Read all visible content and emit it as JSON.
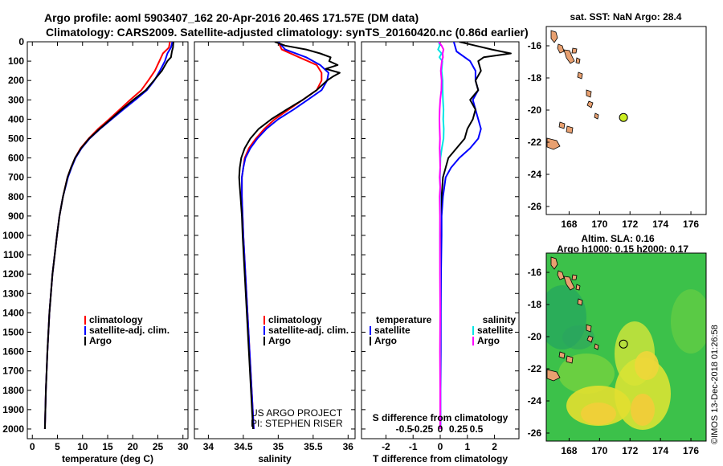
{
  "header": {
    "line1": "Argo profile: aoml 5903407_162 20-Apr-2016 20.46S 171.57E (DM data)",
    "line2": "Climatology: CARS2009. Satellite-adjusted climatology: synTS_20160420.nc (0.86d earlier)"
  },
  "colors": {
    "climatology": "#ff0000",
    "satellite": "#0000ff",
    "argo": "#000000",
    "sat_salinity": "#00e5e5",
    "argo_salinity": "#ff00ff",
    "argo_marker": "#ccee22",
    "land": "#e8a070"
  },
  "chart_data": [
    {
      "id": "temperature",
      "type": "line",
      "xlabel": "temperature (deg C)",
      "ylabel": "",
      "xlim": [
        -1,
        31
      ],
      "ylim": [
        2050,
        0
      ],
      "xticks": [
        0,
        5,
        10,
        15,
        20,
        25,
        30
      ],
      "xtick_labels": [
        "0",
        "5",
        "10",
        "15",
        "20",
        "25",
        "30"
      ],
      "yticks": [
        0,
        100,
        200,
        300,
        400,
        500,
        600,
        700,
        800,
        900,
        1000,
        1100,
        1200,
        1300,
        1400,
        1500,
        1600,
        1700,
        1800,
        1900,
        2000
      ],
      "legend": [
        "climatology",
        "satellite-adj. clim.",
        "Argo"
      ],
      "series": [
        {
          "name": "climatology",
          "color": "#ff0000",
          "depth": [
            0,
            30,
            60,
            100,
            150,
            200,
            250,
            300,
            350,
            400,
            450,
            500,
            550,
            600,
            650,
            700,
            800,
            900,
            1000,
            1200,
            1400,
            1600,
            1800,
            2000
          ],
          "values": [
            27.4,
            27.2,
            26.0,
            25.3,
            24.4,
            23.1,
            21.7,
            19.5,
            17.4,
            15.3,
            13.1,
            11.2,
            9.6,
            8.5,
            7.7,
            7.0,
            6.1,
            5.4,
            4.9,
            4.0,
            3.4,
            3.0,
            2.7,
            2.5
          ]
        },
        {
          "name": "satellite-adj. clim.",
          "color": "#0000ff",
          "depth": [
            0,
            30,
            60,
            100,
            150,
            200,
            250,
            300,
            350,
            400,
            450,
            500,
            550,
            600,
            650,
            700,
            800,
            900,
            1000,
            1200,
            1400,
            1600,
            1800,
            2000
          ],
          "values": [
            27.9,
            27.6,
            26.9,
            26.4,
            25.4,
            24.3,
            22.8,
            20.5,
            18.1,
            15.8,
            13.5,
            11.4,
            9.8,
            8.6,
            7.8,
            7.1,
            6.1,
            5.4,
            4.9,
            4.0,
            3.4,
            3.0,
            2.7,
            2.5
          ]
        },
        {
          "name": "Argo",
          "color": "#000000",
          "depth": [
            0,
            30,
            50,
            80,
            100,
            150,
            200,
            250,
            300,
            350,
            400,
            450,
            500,
            550,
            600,
            650,
            700,
            800,
            900,
            1000,
            1200,
            1400,
            1600,
            1800,
            2000
          ],
          "values": [
            28.1,
            28.0,
            27.8,
            27.6,
            26.9,
            25.8,
            24.2,
            22.6,
            20.1,
            17.8,
            15.6,
            13.4,
            11.3,
            9.7,
            8.5,
            7.7,
            7.0,
            6.1,
            5.4,
            4.9,
            4.0,
            3.4,
            3.0,
            2.7,
            2.5
          ]
        }
      ]
    },
    {
      "id": "salinity",
      "type": "line",
      "xlabel": "salinity",
      "xlim": [
        33.8,
        36.1
      ],
      "ylim": [
        2050,
        0
      ],
      "xticks": [
        34,
        34.5,
        35,
        35.5,
        36
      ],
      "xtick_labels": [
        "34",
        "34.5",
        "35",
        "35.5",
        "36"
      ],
      "legend": [
        "climatology",
        "satellite-adj. clim.",
        "Argo"
      ],
      "credits": [
        "US ARGO PROJECT",
        "PI: STEPHEN RISER"
      ],
      "series": [
        {
          "name": "climatology",
          "color": "#ff0000",
          "depth": [
            0,
            40,
            80,
            120,
            160,
            200,
            250,
            300,
            350,
            400,
            450,
            500,
            550,
            600,
            650,
            700,
            750,
            800,
            900,
            1000,
            1200,
            1400,
            1600,
            1800,
            2000
          ],
          "values": [
            35.0,
            35.05,
            35.3,
            35.55,
            35.62,
            35.62,
            35.55,
            35.35,
            35.15,
            34.95,
            34.8,
            34.68,
            34.58,
            34.52,
            34.5,
            34.48,
            34.48,
            34.48,
            34.49,
            34.5,
            34.53,
            34.56,
            34.59,
            34.62,
            34.65
          ]
        },
        {
          "name": "satellite-adj. clim.",
          "color": "#0000ff",
          "depth": [
            0,
            40,
            80,
            120,
            160,
            200,
            250,
            300,
            350,
            400,
            450,
            500,
            550,
            600,
            650,
            700,
            750,
            800,
            900,
            1000,
            1200,
            1400,
            1600,
            1800,
            2000
          ],
          "values": [
            35.0,
            35.1,
            35.4,
            35.6,
            35.72,
            35.7,
            35.62,
            35.42,
            35.22,
            35.0,
            34.83,
            34.7,
            34.6,
            34.53,
            34.5,
            34.48,
            34.48,
            34.48,
            34.49,
            34.5,
            34.53,
            34.56,
            34.59,
            34.62,
            34.65
          ]
        },
        {
          "name": "Argo",
          "color": "#000000",
          "depth": [
            0,
            20,
            40,
            60,
            80,
            100,
            120,
            140,
            160,
            180,
            200,
            250,
            300,
            350,
            400,
            450,
            500,
            550,
            600,
            650,
            700,
            750,
            800,
            900,
            1000,
            1200,
            1400,
            1600,
            1800,
            2000
          ],
          "values": [
            34.95,
            35.1,
            35.4,
            35.6,
            35.75,
            35.73,
            35.85,
            35.68,
            35.88,
            35.78,
            35.7,
            35.55,
            35.35,
            35.12,
            34.9,
            34.72,
            34.6,
            34.52,
            34.47,
            34.45,
            34.44,
            34.45,
            34.46,
            34.48,
            34.49,
            34.52,
            34.55,
            34.58,
            34.61,
            34.64
          ]
        }
      ]
    },
    {
      "id": "difference",
      "type": "line",
      "xlabel": "T difference from climatology",
      "xlabel_top": "S difference from climatology",
      "xlim": [
        -2.9,
        2.9
      ],
      "ylim": [
        2050,
        0
      ],
      "xticks": [
        -2,
        -1,
        0,
        1,
        2
      ],
      "xtick_labels": [
        "-2",
        "-1",
        "0",
        "1",
        "2"
      ],
      "sticks": [
        -0.5,
        -0.25,
        0,
        0.25,
        0.5
      ],
      "stick_labels": [
        "-0.5",
        "-0.25",
        "0",
        "0.25",
        "0.5"
      ],
      "legend_left_title": "temperature",
      "legend_right_title": "salinity",
      "legend_left": [
        "satellite",
        "Argo"
      ],
      "legend_right": [
        "satellite",
        "Argo"
      ],
      "series": [
        {
          "name": "T satellite",
          "color": "#0000ff",
          "depth": [
            0,
            50,
            100,
            150,
            200,
            250,
            300,
            350,
            400,
            450,
            500,
            550,
            600,
            650,
            700,
            800,
            900,
            1000,
            1200,
            1400,
            1600,
            1800,
            2000
          ],
          "values": [
            0.5,
            0.6,
            1.1,
            1.3,
            1.3,
            1.4,
            1.2,
            1.3,
            1.4,
            1.5,
            1.4,
            1.1,
            0.7,
            0.4,
            0.2,
            0.1,
            0.05,
            0.05,
            0.03,
            0.02,
            0.02,
            0.01,
            0.01
          ]
        },
        {
          "name": "T Argo",
          "color": "#000000",
          "depth": [
            0,
            20,
            40,
            60,
            80,
            100,
            150,
            200,
            250,
            300,
            350,
            400,
            450,
            500,
            550,
            600,
            650,
            700,
            800,
            900,
            1000,
            1200,
            1400,
            1600,
            1800,
            2000
          ],
          "values": [
            0.7,
            1.3,
            1.9,
            2.6,
            1.6,
            1.4,
            1.5,
            1.3,
            1.4,
            1.1,
            1.3,
            1.2,
            1.0,
            0.9,
            0.6,
            0.3,
            0.2,
            0.1,
            0.05,
            0.0,
            0.0,
            0.0,
            0.0,
            0.0,
            0.0,
            0.0
          ]
        },
        {
          "name": "S satellite",
          "color": "#00e5e5",
          "depth": [
            0,
            20,
            40,
            60,
            80,
            100,
            150,
            200,
            250,
            300,
            350,
            400,
            450,
            500,
            550,
            600,
            650,
            700,
            750,
            800,
            900,
            1000,
            1200,
            1400,
            1600,
            1800,
            2000
          ],
          "values": [
            -0.05,
            -0.02,
            -0.08,
            0.05,
            -0.03,
            0.08,
            0.05,
            0.09,
            0.09,
            0.1,
            0.12,
            0.11,
            0.13,
            0.12,
            0.06,
            0.01,
            0.0,
            -0.01,
            0.0,
            0.0,
            0.0,
            -0.01,
            0.0,
            0.0,
            0.0,
            0.0,
            0.0
          ]
        },
        {
          "name": "S Argo",
          "color": "#ff00ff",
          "depth": [
            0,
            20,
            40,
            60,
            80,
            100,
            150,
            200,
            250,
            300,
            350,
            400,
            450,
            500,
            550,
            600,
            650,
            700,
            750,
            800,
            900,
            1000,
            1200,
            1400,
            1600,
            1800,
            2000
          ],
          "values": [
            -0.05,
            0.05,
            0.12,
            0.09,
            0.1,
            0.06,
            0.02,
            0.05,
            0.04,
            0.0,
            -0.02,
            -0.03,
            -0.02,
            -0.01,
            -0.02,
            -0.01,
            0.0,
            -0.02,
            0.0,
            -0.02,
            -0.01,
            -0.01,
            -0.01,
            0.0,
            -0.01,
            0.0,
            0.0
          ]
        }
      ]
    },
    {
      "id": "sst_map",
      "type": "heatmap",
      "title": "sat. SST: NaN Argo: 28.4",
      "xlim": [
        166.5,
        177
      ],
      "ylim": [
        -26.5,
        -14.8
      ],
      "xticks": [
        168,
        170,
        172,
        174,
        176
      ],
      "yticks": [
        -16,
        -18,
        -20,
        -22,
        -24,
        -26
      ],
      "argo_position": [
        171.57,
        -20.46
      ]
    },
    {
      "id": "sla_map",
      "type": "heatmap",
      "title": "Altim. SLA: 0.16",
      "subtitle": "Argo h1000: 0.15 h2000: 0.17",
      "xlim": [
        166.5,
        177
      ],
      "ylim": [
        -26.5,
        -14.8
      ],
      "xticks": [
        168,
        170,
        172,
        174,
        176
      ],
      "yticks": [
        -16,
        -18,
        -20,
        -22,
        -24,
        -26
      ],
      "argo_position": [
        171.57,
        -20.46
      ]
    }
  ],
  "footer": {
    "stamp": "©IMOS 13-Dec-2018 01:26:58"
  }
}
